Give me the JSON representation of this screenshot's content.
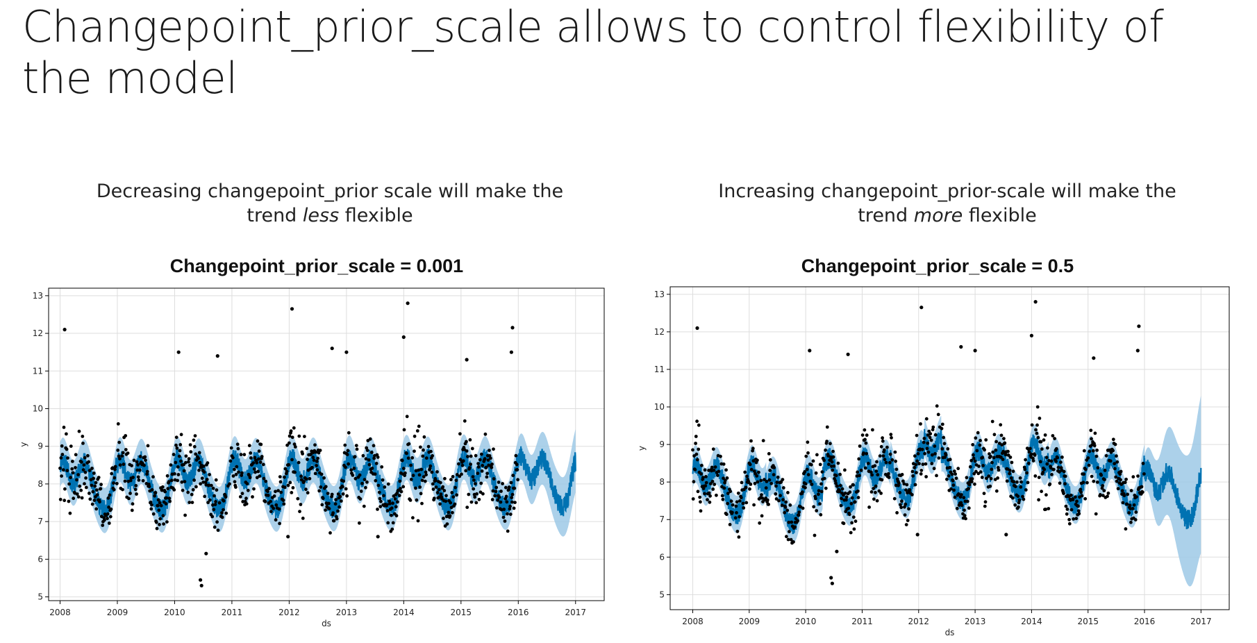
{
  "slide": {
    "title": "Changepoint_prior_scale allows to control flexibility of the model",
    "left_caption": {
      "part1": "Decreasing changepoint_prior scale will make the",
      "part2": "trend ",
      "emph": "less",
      "part3": " flexible"
    },
    "right_caption": {
      "part1": "Increasing changepoint_prior-scale  will make the",
      "part2": "trend ",
      "emph": "more",
      "part3": " flexible"
    }
  },
  "colors": {
    "forecast_line": "#0072B2",
    "interval_band": "#9ec9e6",
    "points": "#000000",
    "grid": "#dddddd",
    "axes": "#000000"
  },
  "chart_data": [
    {
      "type": "scatter",
      "title": "Changepoint_prior_scale = 0.001",
      "xlabel": "ds",
      "ylabel": "y",
      "xlim": [
        2007.8,
        2017.5
      ],
      "ylim": [
        4.9,
        13.2
      ],
      "x_ticks": [
        2008,
        2009,
        2010,
        2011,
        2012,
        2013,
        2014,
        2015,
        2016,
        2017
      ],
      "x_tick_labels": [
        "2008",
        "2009",
        "2010",
        "2011",
        "2012",
        "2013",
        "2014",
        "2015",
        "2016",
        "2017"
      ],
      "y_ticks": [
        5,
        6,
        7,
        8,
        9,
        10,
        11,
        12,
        13
      ],
      "y_tick_labels": [
        "5",
        "6",
        "7",
        "8",
        "9",
        "10",
        "11",
        "12",
        "13"
      ],
      "grid": true,
      "history_end": 2016.0,
      "forecast_end": 2017.0,
      "trend": {
        "start": 8.05,
        "slope": 0.012,
        "changes": []
      },
      "seasonal_amplitude": 0.85,
      "interval_halfwidth": 0.6,
      "series": [
        {
          "name": "Observed",
          "kind": "points",
          "note": "daily observations (black dots)"
        },
        {
          "name": "Forecast yhat",
          "kind": "line"
        },
        {
          "name": "Uncertainty interval",
          "kind": "band"
        }
      ],
      "outliers": [
        [
          2008.08,
          12.1
        ],
        [
          2010.07,
          11.5
        ],
        [
          2010.75,
          11.4
        ],
        [
          2012.05,
          12.65
        ],
        [
          2012.75,
          11.6
        ],
        [
          2013.0,
          11.5
        ],
        [
          2014.07,
          12.8
        ],
        [
          2014.0,
          11.9
        ],
        [
          2015.1,
          11.3
        ],
        [
          2015.9,
          12.15
        ],
        [
          2015.88,
          11.5
        ],
        [
          2010.45,
          5.45
        ],
        [
          2010.47,
          5.3
        ],
        [
          2011.98,
          6.6
        ],
        [
          2013.55,
          6.6
        ],
        [
          2010.55,
          6.15
        ]
      ]
    },
    {
      "type": "scatter",
      "title": "Changepoint_prior_scale = 0.5",
      "xlabel": "ds",
      "ylabel": "y",
      "xlim": [
        2007.6,
        2017.5
      ],
      "ylim": [
        4.6,
        13.2
      ],
      "x_ticks": [
        2008,
        2009,
        2010,
        2011,
        2012,
        2013,
        2014,
        2015,
        2016,
        2017
      ],
      "x_tick_labels": [
        "2008",
        "2009",
        "2010",
        "2011",
        "2012",
        "2013",
        "2014",
        "2015",
        "2016",
        "2017"
      ],
      "y_ticks": [
        5,
        6,
        7,
        8,
        9,
        10,
        11,
        12,
        13
      ],
      "y_tick_labels": [
        "5",
        "6",
        "7",
        "8",
        "9",
        "10",
        "11",
        "12",
        "13"
      ],
      "grid": true,
      "history_end": 2016.0,
      "forecast_end": 2017.0,
      "trend": {
        "start": 7.9,
        "slope": 0.0,
        "changes": [
          [
            2009.3,
            -0.25
          ],
          [
            2010.3,
            0.45
          ],
          [
            2011.5,
            0.2
          ],
          [
            2012.1,
            0.45
          ],
          [
            2012.4,
            -0.5
          ],
          [
            2013.5,
            0.2
          ],
          [
            2014.3,
            -0.3
          ],
          [
            2015.3,
            -0.1
          ],
          [
            2016.0,
            -0.3
          ]
        ]
      },
      "seasonal_amplitude": 0.85,
      "interval_halfwidth": 0.5,
      "series": [
        {
          "name": "Observed",
          "kind": "points",
          "note": "daily observations (black dots)"
        },
        {
          "name": "Forecast yhat",
          "kind": "line"
        },
        {
          "name": "Uncertainty interval",
          "kind": "band"
        }
      ],
      "outliers": [
        [
          2008.08,
          12.1
        ],
        [
          2010.07,
          11.5
        ],
        [
          2010.75,
          11.4
        ],
        [
          2012.05,
          12.65
        ],
        [
          2012.75,
          11.6
        ],
        [
          2013.0,
          11.5
        ],
        [
          2014.07,
          12.8
        ],
        [
          2014.0,
          11.9
        ],
        [
          2015.1,
          11.3
        ],
        [
          2015.9,
          12.15
        ],
        [
          2015.88,
          11.5
        ],
        [
          2010.45,
          5.45
        ],
        [
          2010.47,
          5.3
        ],
        [
          2011.98,
          6.6
        ],
        [
          2013.55,
          6.6
        ],
        [
          2010.55,
          6.15
        ]
      ]
    }
  ]
}
